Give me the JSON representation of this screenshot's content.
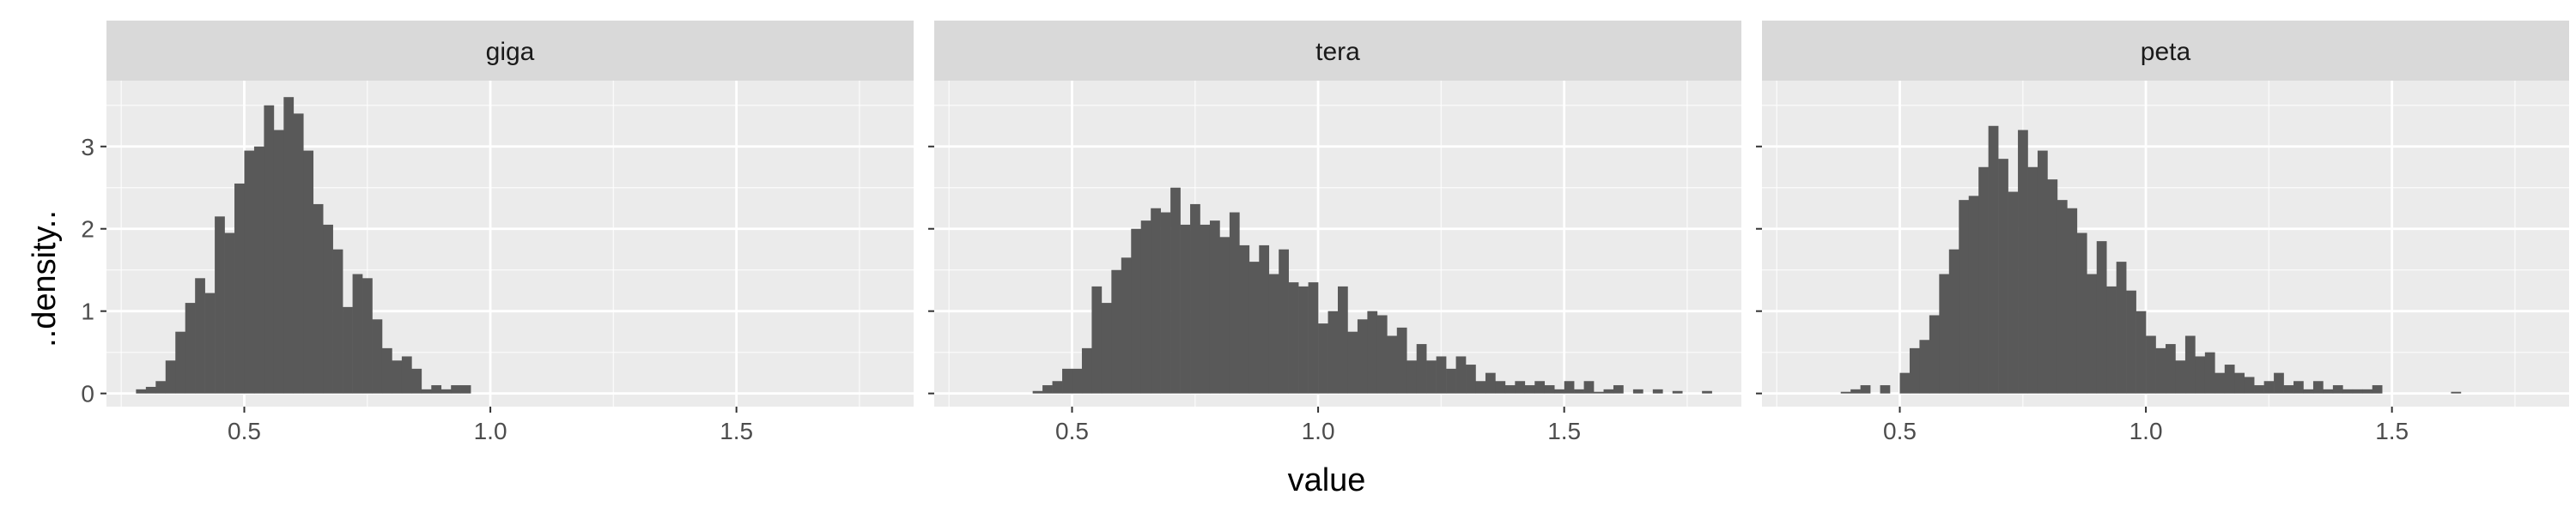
{
  "chart_data": {
    "type": "bar",
    "subtype": "faceted-histogram",
    "title": "",
    "xlabel": "value",
    "ylabel": "..density..",
    "xlim": [
      0.22,
      1.86
    ],
    "ylim": [
      -0.16,
      3.8
    ],
    "x_ticks": [
      0.5,
      1.0,
      1.5
    ],
    "x_tick_labels": [
      "0.5",
      "1.0",
      "1.5"
    ],
    "y_ticks": [
      0,
      1,
      2,
      3
    ],
    "y_tick_labels": [
      "0",
      "1",
      "2",
      "3"
    ],
    "grid": true,
    "legend": "none",
    "bin_width": 0.02,
    "bar_color": "#595959",
    "panel_background": "#ebebeb",
    "strip_background": "#d9d9d9",
    "grid_color": "#ffffff",
    "facets": [
      {
        "label": "giga",
        "bin_start": 0.28,
        "values": [
          0.05,
          0.08,
          0.15,
          0.4,
          0.75,
          1.1,
          1.4,
          1.22,
          2.15,
          1.95,
          2.55,
          2.95,
          3.0,
          3.5,
          3.2,
          3.6,
          3.4,
          2.95,
          2.3,
          2.05,
          1.75,
          1.05,
          1.45,
          1.4,
          0.9,
          0.55,
          0.4,
          0.45,
          0.3,
          0.05,
          0.1,
          0.05,
          0.1,
          0.1
        ]
      },
      {
        "label": "tera",
        "bin_start": 0.42,
        "values": [
          0.03,
          0.1,
          0.15,
          0.3,
          0.3,
          0.55,
          1.3,
          1.1,
          1.5,
          1.65,
          2.0,
          2.1,
          2.25,
          2.2,
          2.5,
          2.05,
          2.3,
          2.05,
          2.1,
          1.9,
          2.2,
          1.8,
          1.6,
          1.8,
          1.45,
          1.75,
          1.35,
          1.3,
          1.35,
          0.85,
          1.0,
          1.3,
          0.75,
          0.9,
          1.0,
          0.95,
          0.7,
          0.8,
          0.4,
          0.6,
          0.4,
          0.45,
          0.3,
          0.45,
          0.35,
          0.15,
          0.25,
          0.15,
          0.1,
          0.15,
          0.1,
          0.15,
          0.1,
          0.05,
          0.15,
          0.05,
          0.15,
          0.02,
          0.05,
          0.1,
          0,
          0.05,
          0,
          0.05,
          0,
          0.03,
          0,
          0,
          0.03
        ]
      },
      {
        "label": "peta",
        "bin_start": 0.34,
        "values": [
          0,
          0,
          0.02,
          0.05,
          0.1,
          0,
          0.1,
          0,
          0.25,
          0.55,
          0.65,
          0.95,
          1.45,
          1.75,
          2.35,
          2.4,
          2.75,
          3.25,
          2.85,
          2.45,
          3.2,
          2.75,
          2.95,
          2.6,
          2.35,
          2.25,
          1.95,
          1.45,
          1.85,
          1.3,
          1.6,
          1.25,
          1.0,
          0.7,
          0.55,
          0.6,
          0.4,
          0.7,
          0.45,
          0.5,
          0.25,
          0.35,
          0.25,
          0.2,
          0.1,
          0.15,
          0.25,
          0.1,
          0.15,
          0.05,
          0.15,
          0.05,
          0.1,
          0.05,
          0.05,
          0.05,
          0.1,
          0,
          0,
          0,
          0,
          0,
          0,
          0,
          0.02
        ]
      }
    ]
  }
}
